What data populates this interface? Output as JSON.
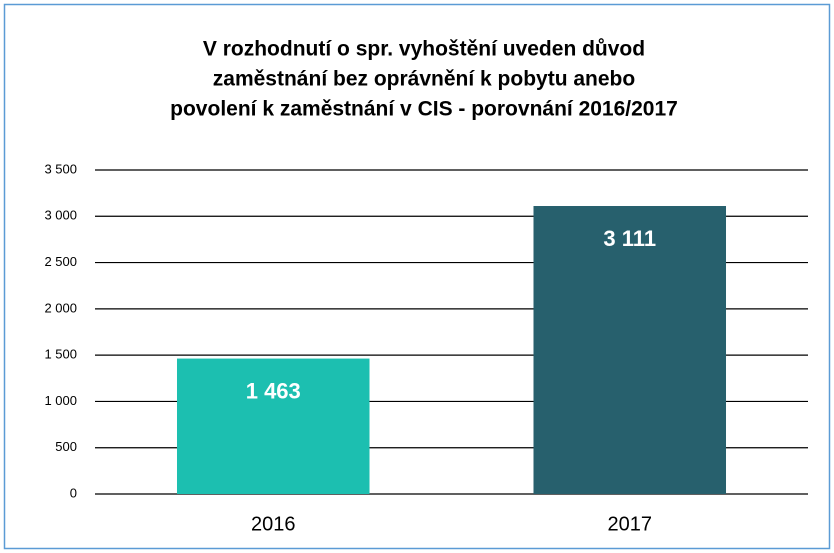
{
  "chart_data": {
    "type": "bar",
    "title": [
      "V rozhodnutí o spr. vyhoštění  uveden důvod",
      "zaměstnání bez oprávnění k pobytu anebo",
      "povolení k zaměstnání v CIS - porovnání 2016/2017"
    ],
    "categories": [
      "2016",
      "2017"
    ],
    "values": [
      1463,
      3111
    ],
    "value_labels": [
      "1 463",
      "3 111"
    ],
    "colors": [
      "#1cbfb0",
      "#27606d"
    ],
    "ylim": [
      0,
      3500
    ],
    "yticks": [
      0,
      500,
      {
        "value": 1000,
        "label": "1 000"
      },
      {
        "value": 1500,
        "label": "1 500"
      },
      {
        "value": 2000,
        "label": "2 000"
      },
      {
        "value": 2500,
        "label": "2 500"
      },
      {
        "value": 3000,
        "label": "3 000"
      },
      {
        "value": 3500,
        "label": "3 500"
      }
    ],
    "grid": true
  }
}
